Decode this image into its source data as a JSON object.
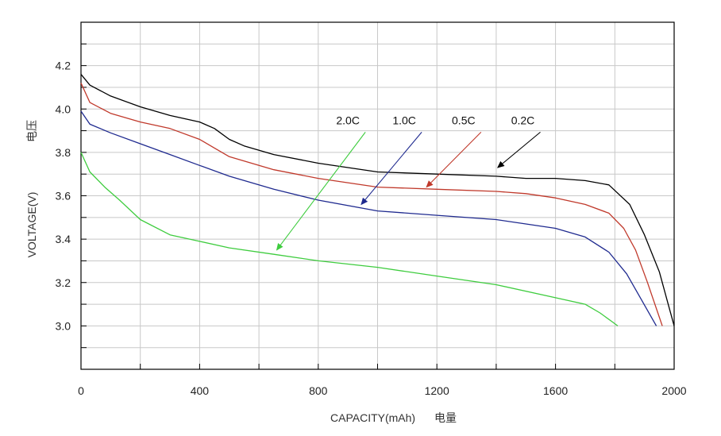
{
  "chart_data": {
    "type": "line",
    "title": "",
    "xlabel": "CAPACITY(mAh)",
    "xlabel_cn": "电量",
    "ylabel": "VOLTAGE(V)",
    "ylabel_cn": "电压",
    "xlim": [
      0,
      2000
    ],
    "ylim": [
      2.8,
      4.4
    ],
    "x_ticks": [
      0,
      400,
      800,
      1200,
      1600,
      2000
    ],
    "x_tick_labels": [
      "0",
      "400",
      "800",
      "1200",
      "1600",
      "2000"
    ],
    "y_ticks": [
      3.0,
      3.2,
      3.4,
      3.6,
      3.8,
      4.0,
      4.2
    ],
    "y_tick_labels": [
      "3.0",
      "3.2",
      "3.4",
      "3.6",
      "3.8",
      "4.0",
      "4.2"
    ],
    "grid": true,
    "series": [
      {
        "name": "0.2C",
        "color": "#000000",
        "points": [
          [
            0,
            4.16
          ],
          [
            30,
            4.11
          ],
          [
            100,
            4.06
          ],
          [
            200,
            4.01
          ],
          [
            300,
            3.97
          ],
          [
            400,
            3.94
          ],
          [
            450,
            3.91
          ],
          [
            500,
            3.86
          ],
          [
            550,
            3.83
          ],
          [
            650,
            3.79
          ],
          [
            800,
            3.75
          ],
          [
            1000,
            3.71
          ],
          [
            1200,
            3.7
          ],
          [
            1400,
            3.69
          ],
          [
            1500,
            3.68
          ],
          [
            1600,
            3.68
          ],
          [
            1700,
            3.67
          ],
          [
            1780,
            3.65
          ],
          [
            1850,
            3.56
          ],
          [
            1900,
            3.42
          ],
          [
            1950,
            3.25
          ],
          [
            1980,
            3.1
          ],
          [
            2000,
            3.0
          ]
        ],
        "label_pos": [
          1490,
          3.93
        ],
        "arrow_end": [
          1405,
          3.73
        ]
      },
      {
        "name": "0.5C",
        "color": "#c0392b",
        "points": [
          [
            0,
            4.12
          ],
          [
            30,
            4.03
          ],
          [
            100,
            3.98
          ],
          [
            200,
            3.94
          ],
          [
            300,
            3.91
          ],
          [
            400,
            3.86
          ],
          [
            450,
            3.82
          ],
          [
            500,
            3.78
          ],
          [
            650,
            3.72
          ],
          [
            800,
            3.68
          ],
          [
            1000,
            3.64
          ],
          [
            1200,
            3.63
          ],
          [
            1400,
            3.62
          ],
          [
            1500,
            3.61
          ],
          [
            1600,
            3.59
          ],
          [
            1700,
            3.56
          ],
          [
            1780,
            3.52
          ],
          [
            1830,
            3.45
          ],
          [
            1870,
            3.35
          ],
          [
            1910,
            3.2
          ],
          [
            1940,
            3.08
          ],
          [
            1960,
            3.0
          ]
        ],
        "label_pos": [
          1290,
          3.93
        ],
        "arrow_end": [
          1165,
          3.64
        ]
      },
      {
        "name": "1.0C",
        "color": "#1f2a8f",
        "points": [
          [
            0,
            3.99
          ],
          [
            30,
            3.93
          ],
          [
            100,
            3.89
          ],
          [
            200,
            3.84
          ],
          [
            300,
            3.79
          ],
          [
            400,
            3.74
          ],
          [
            500,
            3.69
          ],
          [
            650,
            3.63
          ],
          [
            800,
            3.58
          ],
          [
            1000,
            3.53
          ],
          [
            1200,
            3.51
          ],
          [
            1400,
            3.49
          ],
          [
            1500,
            3.47
          ],
          [
            1600,
            3.45
          ],
          [
            1700,
            3.41
          ],
          [
            1780,
            3.34
          ],
          [
            1840,
            3.24
          ],
          [
            1890,
            3.12
          ],
          [
            1940,
            3.0
          ]
        ],
        "label_pos": [
          1090,
          3.93
        ],
        "arrow_end": [
          945,
          3.56
        ]
      },
      {
        "name": "2.0C",
        "color": "#3ecc3e",
        "points": [
          [
            0,
            3.8
          ],
          [
            30,
            3.71
          ],
          [
            80,
            3.64
          ],
          [
            130,
            3.58
          ],
          [
            200,
            3.49
          ],
          [
            300,
            3.42
          ],
          [
            400,
            3.39
          ],
          [
            500,
            3.36
          ],
          [
            650,
            3.33
          ],
          [
            800,
            3.3
          ],
          [
            1000,
            3.27
          ],
          [
            1200,
            3.23
          ],
          [
            1400,
            3.19
          ],
          [
            1600,
            3.13
          ],
          [
            1700,
            3.1
          ],
          [
            1750,
            3.06
          ],
          [
            1790,
            3.02
          ],
          [
            1810,
            3.0
          ]
        ],
        "label_pos": [
          900,
          3.93
        ],
        "arrow_end": [
          660,
          3.35
        ]
      }
    ]
  }
}
